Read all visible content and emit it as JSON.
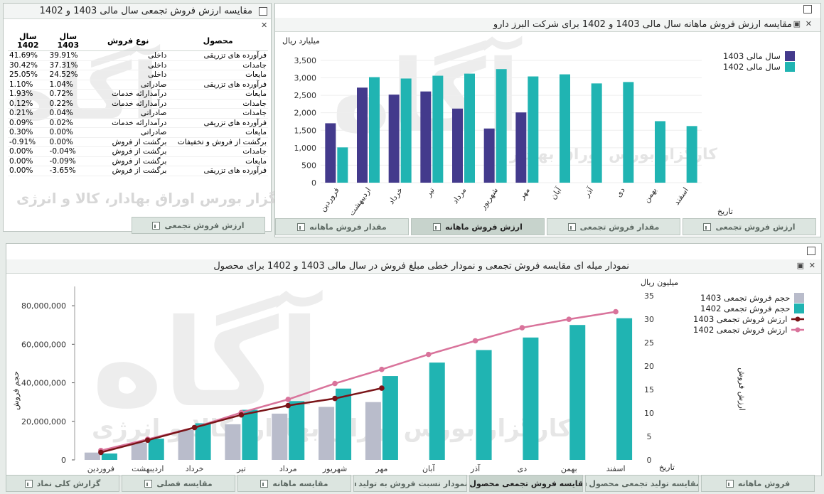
{
  "panel1": {
    "title": "مقایسه ارزش فروش تجمعی سال مالی 1403 و 1402",
    "headers": [
      "محصول",
      "نوع فروش",
      "سال 1403",
      "سال 1402"
    ],
    "rows": [
      [
        "فرآورده های تزریقی",
        "داخلی",
        "39.91%",
        "41.69%"
      ],
      [
        "جامدات",
        "داخلی",
        "37.31%",
        "30.42%"
      ],
      [
        "مایعات",
        "داخلی",
        "24.52%",
        "25.05%"
      ],
      [
        "فرآورده های تزریقی",
        "صادراتی",
        "1.04%",
        "1.10%"
      ],
      [
        "مایعات",
        "درآمدارائه خدمات",
        "0.72%",
        "1.93%"
      ],
      [
        "جامدات",
        "درآمدارائه خدمات",
        "0.22%",
        "0.12%"
      ],
      [
        "جامدات",
        "صادراتی",
        "0.04%",
        "0.21%"
      ],
      [
        "فرآورده های تزریقی",
        "درآمدارائه خدمات",
        "0.02%",
        "0.09%"
      ],
      [
        "مایعات",
        "صادراتی",
        "0.00%",
        "0.30%"
      ],
      [
        "برگشت از فروش و تخفیفات",
        "برگشت از فروش",
        "0.00%",
        "-0.91%"
      ],
      [
        "جامدات",
        "برگشت از فروش",
        "-0.04%",
        "0.00%"
      ],
      [
        "مایعات",
        "برگشت از فروش",
        "-0.09%",
        "0.00%"
      ],
      [
        "فرآورده های تزریقی",
        "برگشت از فروش",
        "-3.65%",
        "0.00%"
      ]
    ],
    "watermark": "کارگزار بورس اوراق بهادار، کالا و انرژی",
    "tabs": [
      "ارزش فروش تجمعی",
      "مقدار فروش تجمعی",
      "ارزش فروش ماهانه",
      "مقدار فروش ماهانه"
    ],
    "active_tab": 2
  },
  "panel2": {
    "title": "مقایسه ارزش فروش ماهانه سال مالی 1403 و 1402 برای شرکت البرز دارو",
    "unit": "میلیارد ریال",
    "xaxis_label": "تاریخ",
    "legend": [
      "سال مالی 1403",
      "سال مالی 1402"
    ],
    "colors": {
      "s1403": "#433a8c",
      "s1402": "#20b4b2"
    }
  },
  "panel3": {
    "title": "نمودار میله ای مقایسه فروش تجمعی و نمودار خطی مبلغ فروش در سال مالی 1403 و 1402 برای محصول",
    "left_axis_label": "حجم فروش",
    "right_axis_label": "ارزش فروش",
    "right_unit": "میلیون ریال",
    "xaxis_label": "تاریخ",
    "legend": [
      "حجم فروش تجمعی 1403",
      "حجم فروش تجمعی 1402",
      "ارزش فروش تجمعی 1403",
      "ارزش فروش تجمعی 1402"
    ],
    "colors": {
      "bar1403": "#b9bccb",
      "bar1402": "#20b4b2",
      "line1403": "#7a1418",
      "line1402": "#d9739b"
    }
  },
  "bottom_tabs": [
    "فروش ماهانه",
    "مقایسه تولید تجمعی محصول",
    "مقایسه فروش تجمعی محصول",
    "نمودار نسبت فروش به تولید",
    "مقایسه ماهانه",
    "مقایسه فصلی",
    "گزارش کلی نماد"
  ],
  "bottom_active": 2,
  "chart_data": [
    {
      "type": "bar",
      "title": "مقایسه ارزش فروش ماهانه سال مالی 1403 و 1402 برای شرکت البرز دارو",
      "categories": [
        "فروردین",
        "اردیبهشت",
        "خرداد",
        "تیر",
        "مرداد",
        "شهریور",
        "مهر",
        "آبان",
        "آذر",
        "دی",
        "بهمن",
        "اسفند"
      ],
      "series": [
        {
          "name": "سال مالی 1403",
          "values": [
            1700,
            2720,
            2520,
            2610,
            2120,
            1550,
            2010,
            null,
            null,
            null,
            null,
            null
          ]
        },
        {
          "name": "سال مالی 1402",
          "values": [
            1010,
            3020,
            2980,
            3060,
            3120,
            3250,
            3040,
            3100,
            2840,
            2880,
            1760,
            1620
          ]
        }
      ],
      "ylabel": "میلیارد ریال",
      "xlabel": "تاریخ",
      "ylim": [
        0,
        3600
      ],
      "yticks": [
        0,
        500,
        1000,
        1500,
        2000,
        2500,
        3000,
        3500
      ],
      "legend_position": "top-right"
    },
    {
      "type": "bar",
      "title": "نمودار میله ای مقایسه فروش تجمعی و نمودار خطی مبلغ فروش در سال مالی 1403 و 1402 برای محصول",
      "categories": [
        "فروردین",
        "اردیبهشت",
        "خرداد",
        "تیر",
        "مرداد",
        "شهریور",
        "مهر",
        "آبان",
        "آذر",
        "دی",
        "بهمن",
        "اسفند"
      ],
      "bar_series": [
        {
          "name": "حجم فروش تجمعی 1403",
          "values": [
            3800000,
            9000000,
            15500000,
            18500000,
            24000000,
            27500000,
            30000000,
            null,
            null,
            null,
            null,
            null
          ]
        },
        {
          "name": "حجم فروش تجمعی 1402",
          "values": [
            3300000,
            11000000,
            19000000,
            26000000,
            30500000,
            37000000,
            43500000,
            50500000,
            57000000,
            63500000,
            70000000,
            73500000
          ]
        }
      ],
      "line_series": [
        {
          "name": "ارزش فروش تجمعی 1403",
          "values": [
            1.6,
            4.2,
            6.9,
            9.6,
            11.6,
            13.1,
            15.3,
            null,
            null,
            null,
            null,
            null
          ]
        },
        {
          "name": "ارزش فروش تجمعی 1402",
          "values": [
            2.0,
            4.4,
            6.9,
            10.1,
            12.9,
            16.3,
            19.3,
            22.5,
            25.4,
            28.2,
            30.0,
            31.6
          ]
        }
      ],
      "ylabel": "حجم فروش",
      "y2label": "ارزش فروش",
      "y2unit": "میلیون ریال",
      "xlabel": "تاریخ",
      "ylim": [
        0,
        90000000
      ],
      "yticks": [
        0,
        20000000,
        40000000,
        60000000,
        80000000
      ],
      "yticklabels": [
        "0",
        "20,000,000",
        "40,000,000",
        "60,000,000",
        "80,000,000"
      ],
      "y2lim": [
        0,
        37
      ],
      "y2ticks": [
        0,
        5,
        10,
        15,
        20,
        25,
        30,
        35
      ],
      "legend_position": "top-right"
    }
  ]
}
